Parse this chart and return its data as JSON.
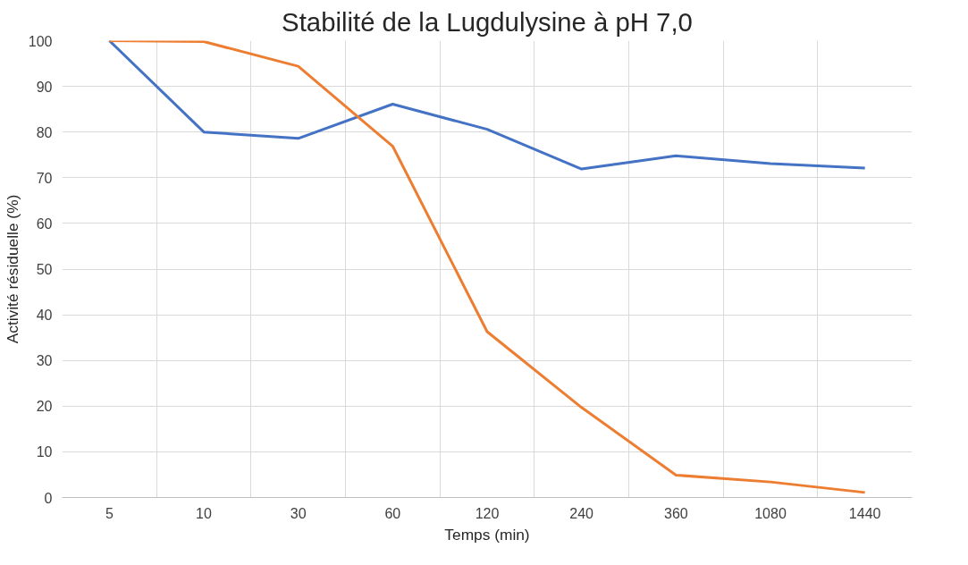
{
  "chart_data": {
    "type": "line",
    "title": "Stabilité de la Lugdulysine à pH 7,0",
    "xlabel": "Temps (min)",
    "ylabel": "Activité résiduelle (%)",
    "categories": [
      "5",
      "10",
      "30",
      "60",
      "120",
      "240",
      "360",
      "1080",
      "1440"
    ],
    "series": [
      {
        "color": "#4472c4",
        "values": [
          100,
          80,
          78.6,
          86.1,
          80.6,
          71.9,
          74.8,
          73.1,
          72.1
        ]
      },
      {
        "color": "#ed7d31",
        "values": [
          100,
          99.8,
          94.4,
          76.9,
          36.3,
          19.7,
          4.9,
          3.4,
          1.1
        ]
      }
    ],
    "ylim": [
      0,
      100
    ],
    "yticks": [
      0,
      10,
      20,
      30,
      40,
      50,
      60,
      70,
      80,
      90,
      100
    ],
    "grid": true,
    "line_style": "solid"
  }
}
